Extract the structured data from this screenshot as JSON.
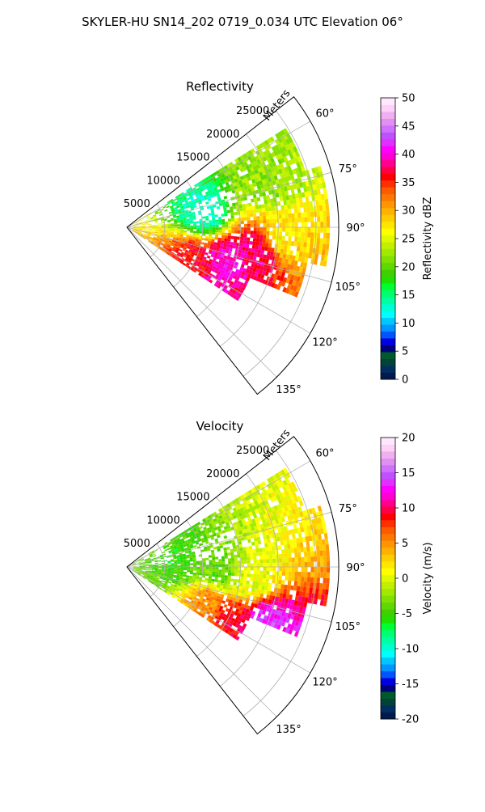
{
  "suptitle": "SKYLER-HU  SN14_202  0719_0.034 UTC Elevation 06°",
  "chart_data": [
    {
      "type": "heatmap",
      "subtype": "polar-sector radar PPI",
      "title": "Reflectivity",
      "radial_label": "Meters",
      "radial_ticks": [
        "5000",
        "10000",
        "15000",
        "20000",
        "25000"
      ],
      "radial_tick_values": [
        5000,
        10000,
        15000,
        20000,
        25000
      ],
      "r_max": 28000,
      "angle_ticks": [
        "60°",
        "75°",
        "90°",
        "105°",
        "120°",
        "135°"
      ],
      "angle_tick_values": [
        60,
        75,
        90,
        105,
        120,
        135
      ],
      "theta_range": [
        52,
        142
      ],
      "grid": true,
      "colorbar": {
        "label": "Reflectivity dBZ",
        "ticks": [
          "0",
          "5",
          "10",
          "15",
          "20",
          "25",
          "30",
          "35",
          "40",
          "45",
          "50"
        ],
        "min": 0,
        "max": 50,
        "colors": [
          "#001a4d",
          "#002f5f",
          "#00433a",
          "#005a2a",
          "#00007a",
          "#0000e0",
          "#0055ff",
          "#0096ff",
          "#00c8ff",
          "#00ffff",
          "#00ffd0",
          "#00ffa0",
          "#00ff70",
          "#00ff30",
          "#20e000",
          "#40d000",
          "#60d800",
          "#80e000",
          "#a0ea00",
          "#c0f000",
          "#e0f800",
          "#ffff00",
          "#ffe600",
          "#ffcc00",
          "#ffb000",
          "#ff9600",
          "#ff7800",
          "#ff5a00",
          "#ff3000",
          "#ff0000",
          "#ff0048",
          "#ff0090",
          "#ff00d0",
          "#ff00ff",
          "#e030ff",
          "#c050ff",
          "#d070ff",
          "#e090f0",
          "#f0b0f0",
          "#ffd0f8",
          "#ffe8ff"
        ]
      },
      "regions": [
        {
          "theta": 100,
          "r": 17500,
          "value": 38
        },
        {
          "theta": 108,
          "r": 13500,
          "value": 40
        },
        {
          "theta": 113,
          "r": 9500,
          "value": 36
        },
        {
          "theta": 93,
          "r": 20500,
          "value": 27
        },
        {
          "theta": 72,
          "r": 19000,
          "value": 22
        },
        {
          "theta": 80,
          "r": 10000,
          "value": 13
        }
      ]
    },
    {
      "type": "heatmap",
      "subtype": "polar-sector radar PPI",
      "title": "Velocity",
      "radial_label": "Meters",
      "radial_ticks": [
        "5000",
        "10000",
        "15000",
        "20000",
        "25000"
      ],
      "radial_tick_values": [
        5000,
        10000,
        15000,
        20000,
        25000
      ],
      "r_max": 28000,
      "angle_ticks": [
        "60°",
        "75°",
        "90°",
        "105°",
        "120°",
        "135°"
      ],
      "angle_tick_values": [
        60,
        75,
        90,
        105,
        120,
        135
      ],
      "theta_range": [
        52,
        142
      ],
      "grid": true,
      "colorbar": {
        "label": "Velocity (m/s)",
        "ticks": [
          "-20",
          "-15",
          "-10",
          "-5",
          "0",
          "5",
          "10",
          "15",
          "20"
        ],
        "min": -20,
        "max": 20,
        "colors": [
          "#001a4d",
          "#002f5f",
          "#00433a",
          "#005a2a",
          "#00007a",
          "#0000e0",
          "#0055ff",
          "#0096ff",
          "#00c8ff",
          "#00ffff",
          "#00ffd0",
          "#00ffa0",
          "#00ff70",
          "#00ff30",
          "#20e000",
          "#40d000",
          "#60d800",
          "#80e000",
          "#a0ea00",
          "#c0f000",
          "#e0f800",
          "#ffff00",
          "#ffe600",
          "#ffcc00",
          "#ffb000",
          "#ff9600",
          "#ff7800",
          "#ff5a00",
          "#ff3000",
          "#ff0000",
          "#ff0048",
          "#ff0090",
          "#ff00d0",
          "#ff00ff",
          "#e030ff",
          "#c050ff",
          "#d070ff",
          "#e090f0",
          "#f0b0f0",
          "#ffd0f8",
          "#ffe8ff"
        ]
      },
      "regions": [
        {
          "theta": 95,
          "r": 16000,
          "value": 0
        },
        {
          "theta": 92,
          "r": 12000,
          "value": -4
        },
        {
          "theta": 113,
          "r": 11500,
          "value": 5
        },
        {
          "theta": 116,
          "r": 15000,
          "value": 9
        },
        {
          "theta": 112,
          "r": 19500,
          "value": 14
        },
        {
          "theta": 82,
          "r": 7000,
          "value": -5
        }
      ]
    }
  ]
}
